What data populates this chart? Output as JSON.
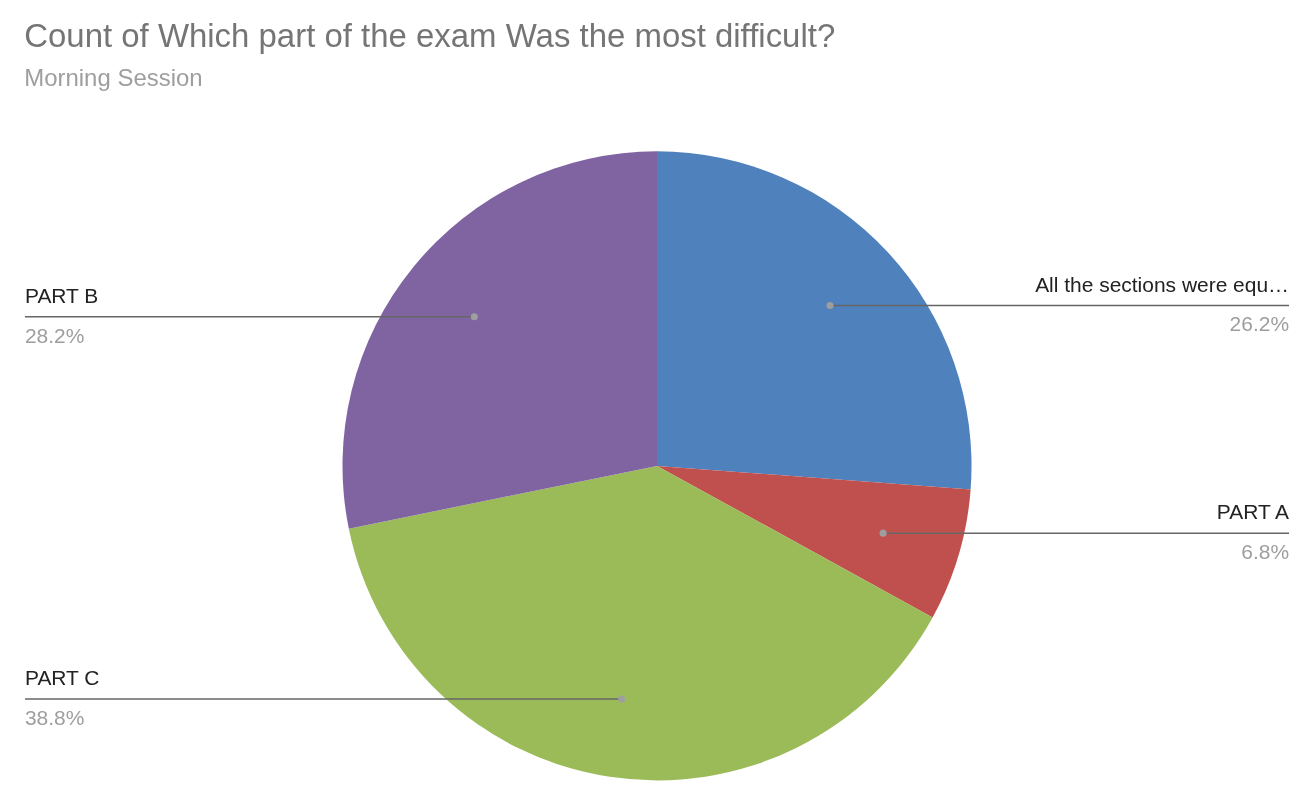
{
  "chart_data": {
    "type": "pie",
    "title": "Count of Which part of the exam Was the most difficult?",
    "subtitle": "Morning Session",
    "categories": [
      "All the sections were equ…",
      "PART A",
      "PART C",
      "PART B"
    ],
    "values": [
      26.2,
      6.8,
      38.8,
      28.2
    ],
    "colors": [
      "#4f81bd",
      "#c0504d",
      "#9bbb59",
      "#8064a2"
    ],
    "value_labels": [
      "26.2%",
      "6.8%",
      "38.8%",
      "28.2%"
    ]
  }
}
